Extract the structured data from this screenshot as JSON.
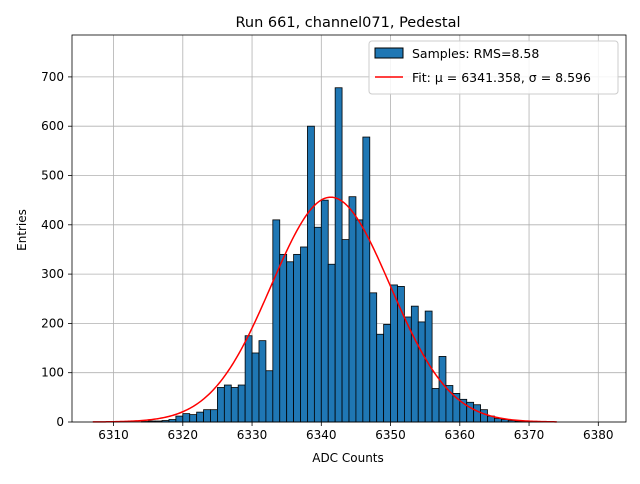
{
  "chart_data": {
    "type": "bar",
    "title": "Run 661, channel071, Pedestal",
    "xlabel": "ADC Counts",
    "ylabel": "Entries",
    "xlim": [
      6304,
      6384
    ],
    "ylim": [
      0,
      785
    ],
    "xticks": [
      6310,
      6320,
      6330,
      6340,
      6350,
      6360,
      6370,
      6380
    ],
    "yticks": [
      0,
      100,
      200,
      300,
      400,
      500,
      600,
      700
    ],
    "grid": true,
    "legend_position": "top-right",
    "bin_width": 1,
    "series": [
      {
        "name": "Samples: RMS=8.58",
        "kind": "histogram",
        "color": "#1f77b4",
        "edgecolor": "#000000",
        "bin_left_edges": [
          6314,
          6315,
          6316,
          6317,
          6318,
          6319,
          6320,
          6321,
          6322,
          6323,
          6324,
          6325,
          6326,
          6327,
          6328,
          6329,
          6330,
          6331,
          6332,
          6333,
          6334,
          6335,
          6336,
          6337,
          6338,
          6339,
          6340,
          6341,
          6342,
          6343,
          6344,
          6345,
          6346,
          6347,
          6348,
          6349,
          6350,
          6351,
          6352,
          6353,
          6354,
          6355,
          6356,
          6357,
          6358,
          6359,
          6360,
          6361,
          6362,
          6363,
          6364,
          6365,
          6366,
          6367,
          6368,
          6369,
          6370,
          6371
        ],
        "counts": [
          1,
          2,
          2,
          3,
          5,
          12,
          17,
          15,
          20,
          25,
          25,
          70,
          75,
          70,
          75,
          175,
          140,
          165,
          104,
          410,
          340,
          325,
          340,
          355,
          600,
          395,
          450,
          320,
          678,
          370,
          457,
          410,
          578,
          262,
          178,
          198,
          278,
          275,
          213,
          235,
          203,
          225,
          68,
          133,
          74,
          58,
          46,
          40,
          35,
          25,
          12,
          7,
          5,
          3,
          2,
          1,
          1,
          1
        ]
      },
      {
        "name": "Fit: μ = 6341.358, σ = 8.596",
        "kind": "line",
        "color": "#ff0000",
        "gaussian_mean": 6341.358,
        "gaussian_sigma": 8.596,
        "gaussian_amplitude": 456,
        "x_range": [
          6307,
          6374
        ]
      }
    ]
  }
}
